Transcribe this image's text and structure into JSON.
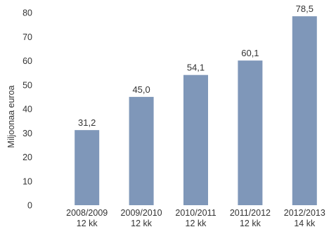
{
  "chart_data": {
    "type": "bar",
    "categories": [
      [
        "2008/2009",
        "12 kk"
      ],
      [
        "2009/2010",
        "12 kk"
      ],
      [
        "2010/2011",
        "12 kk"
      ],
      [
        "2011/2012",
        "12 kk"
      ],
      [
        "2012/2013",
        "14 kk"
      ]
    ],
    "values": [
      31.2,
      45.0,
      54.1,
      60.1,
      78.5
    ],
    "data_labels": [
      "31,2",
      "45,0",
      "54,1",
      "60,1",
      "78,5"
    ],
    "ylabel": "Miljoonaa euroa",
    "xlabel": "",
    "ylim": [
      0,
      80
    ],
    "yticks": [
      0,
      10,
      20,
      30,
      40,
      50,
      60,
      70,
      80
    ],
    "grid": false,
    "bar_color": "#7f97b9"
  }
}
